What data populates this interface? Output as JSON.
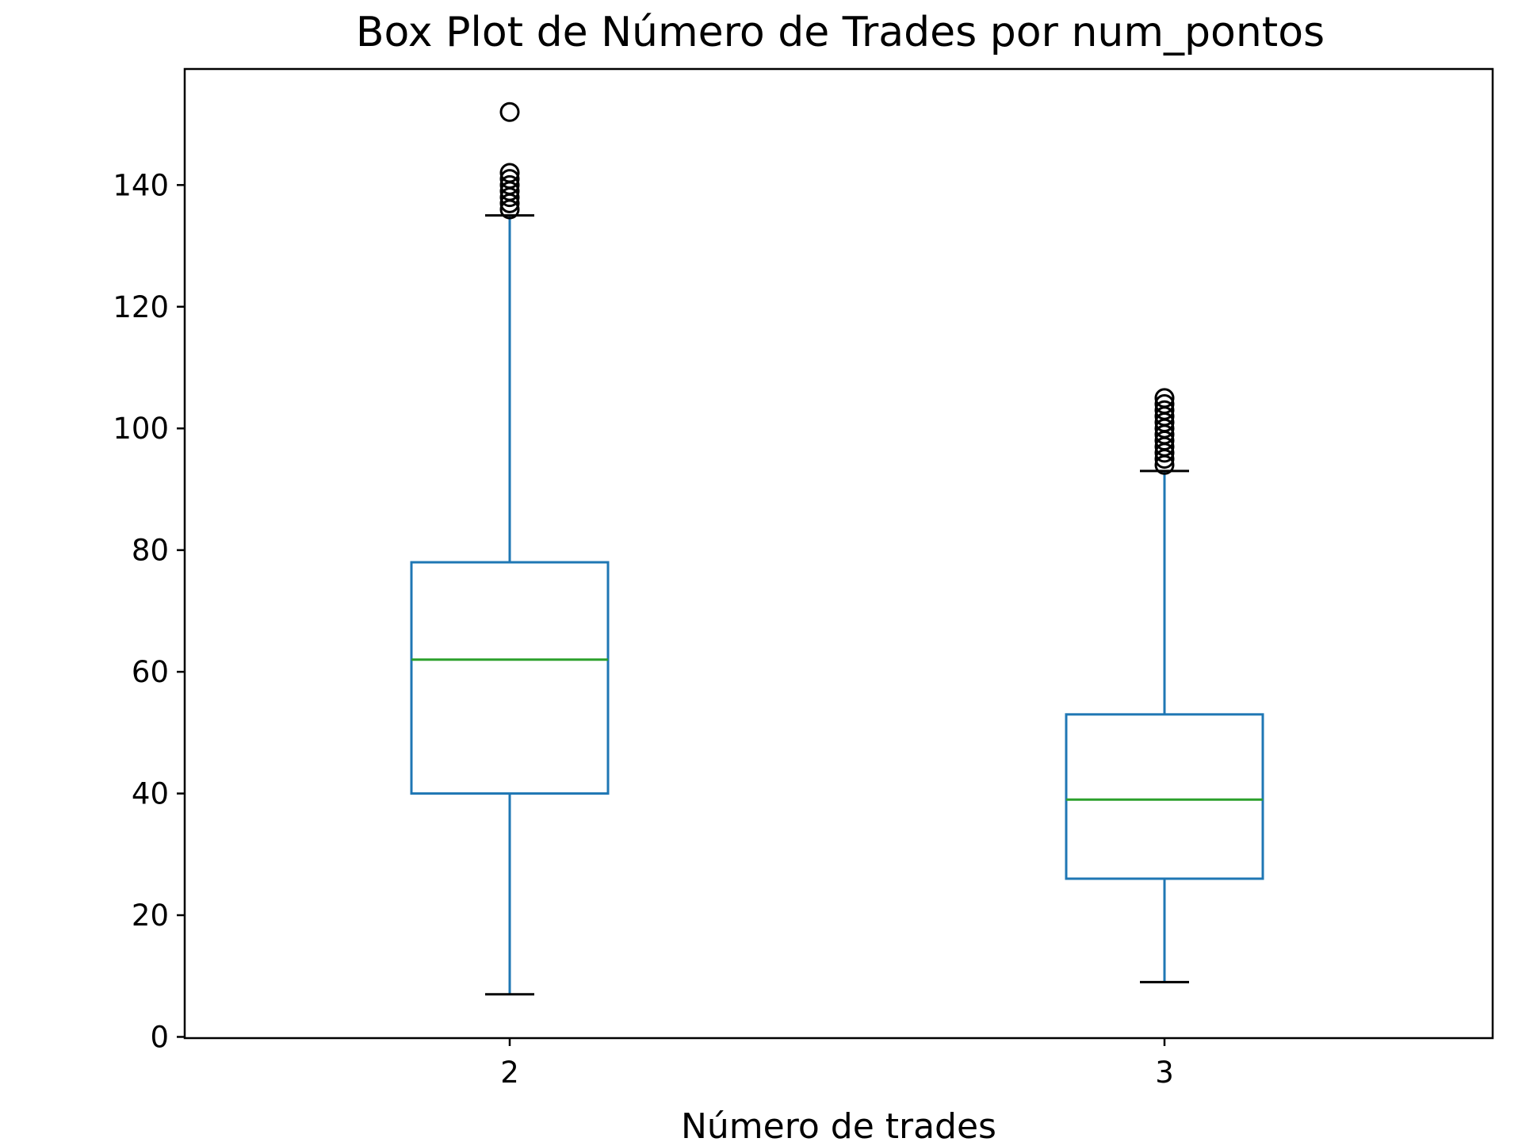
{
  "chart_data": {
    "type": "box",
    "title": "Box Plot de Número de Trades por num_pontos",
    "xlabel": "Número de trades",
    "ylabel": "",
    "categories": [
      "2",
      "3"
    ],
    "ylim": [
      0,
      158
    ],
    "yticks": [
      0,
      20,
      40,
      60,
      80,
      100,
      120,
      140
    ],
    "grid": false,
    "boxes": [
      {
        "category": "2",
        "whisker_low": 7,
        "q1": 40,
        "median": 62,
        "q3": 78,
        "whisker_high": 135,
        "outliers": [
          136,
          137,
          138,
          139,
          140,
          141,
          142,
          152
        ]
      },
      {
        "category": "3",
        "whisker_low": 9,
        "q1": 26,
        "median": 39,
        "q3": 53,
        "whisker_high": 93,
        "outliers": [
          94,
          95,
          96,
          97,
          98,
          99,
          100,
          101,
          102,
          103,
          104,
          105
        ]
      }
    ],
    "colors": {
      "box": "#1f77b4",
      "median": "#2ca02c",
      "caps": "#000000",
      "outlier_edge": "#000000",
      "axes": "#000000"
    }
  }
}
